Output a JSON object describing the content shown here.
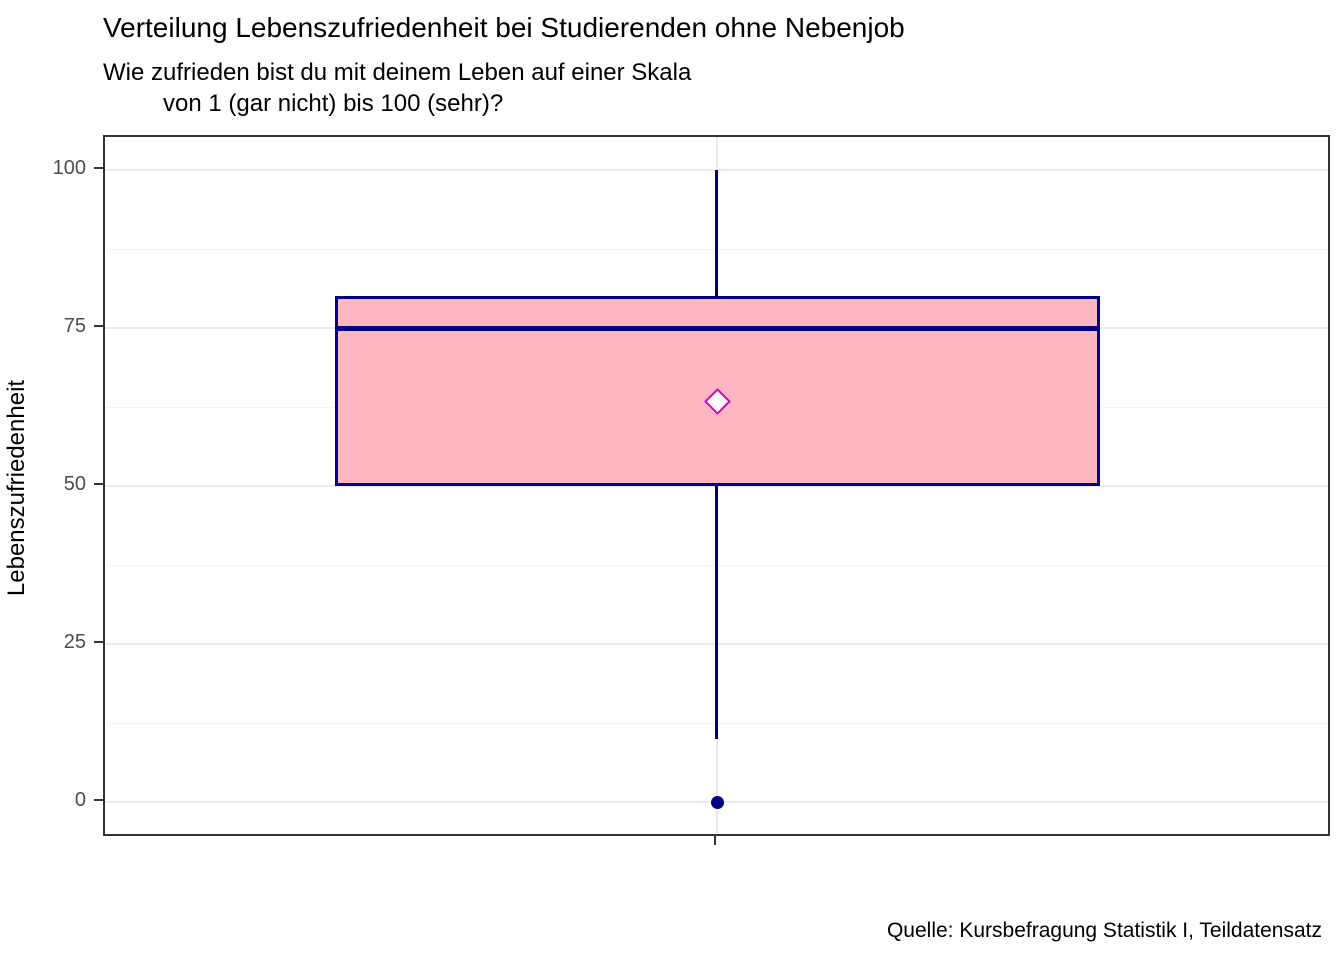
{
  "chart": {
    "title": "Verteilung Lebenszufriedenheit bei Studierenden ohne Nebenjob",
    "subtitle_line1": "Wie zufrieden bist du mit deinem Leben auf einer Skala",
    "subtitle_line2": "von 1 (gar nicht) bis 100 (sehr)?",
    "ylabel": "Lebenszufriedenheit",
    "caption": "Quelle: Kursbefragung Statistik I, Teildatensatz"
  },
  "chart_data": {
    "type": "boxplot",
    "title": "Verteilung Lebenszufriedenheit bei Studierenden ohne Nebenjob",
    "subtitle": "Wie zufrieden bist du mit deinem Leben auf einer Skala\nvon 1 (gar nicht) bis 100 (sehr)?",
    "caption": "Quelle: Kursbefragung Statistik I, Teildatensatz",
    "xlabel": "",
    "ylabel": "Lebenszufriedenheit",
    "ylim": [
      -6,
      105
    ],
    "yticks": [
      0,
      25,
      50,
      75,
      100
    ],
    "grid": "horizontal major+minor light gray, one vertical major at category center, dark panel border",
    "legend": "none",
    "categories": [
      ""
    ],
    "series": [
      {
        "q1": 50,
        "median": 75,
        "q3": 80,
        "whisker_low": 10,
        "whisker_high": 100,
        "mean": 63.3,
        "outliers": [
          0
        ]
      }
    ],
    "colors": {
      "box_fill": "#ffb6c1",
      "box_border": "#000080",
      "median": "#000080",
      "mean_marker_fill": "#ffffff",
      "mean_marker_border": "#cc00cc",
      "outlier": "#000080",
      "grid_major": "#ebebeb",
      "grid_minor": "#f5f5f5",
      "panel_border": "#333333",
      "tick_label": "#4d4d4d",
      "text": "#000000",
      "background": "#ffffff"
    }
  }
}
